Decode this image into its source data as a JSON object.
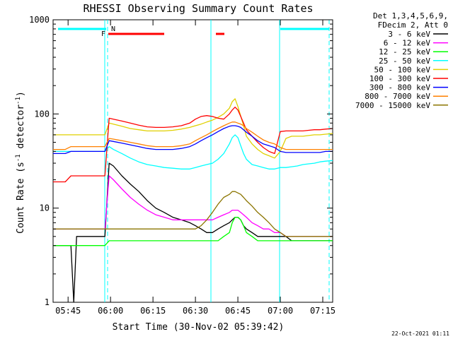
{
  "chart_data": {
    "type": "line",
    "title": "RHESSI Observing Summary Count Rates",
    "xlabel": "Start Time (30-Nov-02 05:39:42)",
    "ylabel_main": "Count Rate (s",
    "ylabel_sup1": "-1",
    "ylabel_mid": " detector",
    "ylabel_sup2": "-1",
    "ylabel_end": ")",
    "yscale": "log",
    "ylim": [
      1,
      1000
    ],
    "xlim_minutes": [
      339.7,
      438.5
    ],
    "x_ticks": [
      {
        "label": "05:45",
        "minute": 345
      },
      {
        "label": "06:00",
        "minute": 360
      },
      {
        "label": "06:15",
        "minute": 375
      },
      {
        "label": "06:30",
        "minute": 390
      },
      {
        "label": "06:45",
        "minute": 405
      },
      {
        "label": "07:00",
        "minute": 420
      },
      {
        "label": "07:15",
        "minute": 435
      }
    ],
    "y_ticks": [
      {
        "label": "1",
        "value": 1
      },
      {
        "label": "10",
        "value": 10
      },
      {
        "label": "100",
        "value": 100
      },
      {
        "label": "1000",
        "value": 1000
      }
    ],
    "legend": {
      "header": [
        "Det 1,3,4,5,6,9,",
        "FDecim 2, Att 0"
      ],
      "placement": "right"
    },
    "series": [
      {
        "name": "3 - 6 keV",
        "color": "#000000",
        "x": [
          339.7,
          341,
          342,
          343,
          344,
          346,
          347,
          348,
          350,
          352,
          354,
          356,
          357,
          358,
          359.5,
          361,
          364,
          367,
          370,
          373,
          376,
          379,
          382,
          385,
          388,
          390,
          392,
          394,
          396,
          398,
          400,
          402,
          403,
          404,
          405,
          406,
          407,
          408,
          410,
          412,
          414,
          416,
          418,
          420,
          422,
          424,
          426,
          428,
          430,
          432,
          434,
          436,
          438.5
        ],
        "y": [
          4,
          4,
          4,
          4,
          4,
          4,
          1,
          5,
          5,
          5,
          5,
          5,
          5,
          5,
          30,
          28,
          22,
          18,
          15,
          12,
          10,
          9,
          8,
          7.5,
          7,
          6.5,
          6,
          5.5,
          5.5,
          6,
          6.5,
          7,
          7.5,
          8,
          8,
          7.5,
          6.5,
          6,
          5.5,
          5,
          5,
          5,
          5,
          5,
          5,
          4.5,
          4.5,
          4.5,
          4.5,
          4.5,
          4.5,
          4.5,
          4.5
        ]
      },
      {
        "name": "6 - 12 keV",
        "color": "#ff00ff",
        "x": [
          339.7,
          341,
          342,
          343,
          344,
          346,
          347,
          348,
          350,
          352,
          354,
          356,
          357,
          358,
          359.5,
          361,
          364,
          367,
          370,
          373,
          376,
          379,
          382,
          385,
          388,
          390,
          392,
          394,
          396,
          398,
          400,
          402,
          403,
          404,
          405,
          406,
          407,
          408,
          410,
          412,
          414,
          416,
          418,
          420,
          422,
          424,
          426,
          428,
          430,
          432,
          434,
          436,
          438.5
        ],
        "y": [
          6,
          6,
          6,
          6,
          6,
          6,
          6,
          6,
          6,
          6,
          6,
          6,
          6,
          6,
          22,
          20,
          16,
          13,
          11,
          9.5,
          8.5,
          8,
          7.5,
          7.5,
          7.5,
          7.5,
          7.5,
          7.5,
          7.5,
          8,
          8.5,
          9,
          9.5,
          9.5,
          9.5,
          9,
          8.5,
          8,
          7,
          6.5,
          6,
          6,
          5.5,
          5.5,
          5,
          5,
          5,
          5,
          5,
          5,
          5,
          5,
          5
        ]
      },
      {
        "name": "12 - 25 keV",
        "color": "#00ff00",
        "x": [
          339.7,
          341,
          342,
          343,
          344,
          346,
          347,
          348,
          350,
          352,
          354,
          356,
          357,
          358,
          359.5,
          361,
          364,
          367,
          370,
          373,
          376,
          379,
          382,
          385,
          388,
          390,
          392,
          394,
          396,
          398,
          400,
          402,
          403,
          404,
          405,
          406,
          407,
          408,
          410,
          412,
          414,
          416,
          418,
          420,
          422,
          424,
          426,
          428,
          430,
          432,
          434,
          436,
          438.5
        ],
        "y": [
          4,
          4,
          4,
          4,
          4,
          4,
          4,
          4,
          4,
          4,
          4,
          4,
          4,
          4,
          4.5,
          4.5,
          4.5,
          4.5,
          4.5,
          4.5,
          4.5,
          4.5,
          4.5,
          4.5,
          4.5,
          4.5,
          4.5,
          4.5,
          4.5,
          4.5,
          5,
          5.5,
          7,
          8,
          8,
          7.5,
          6.5,
          5.5,
          5,
          4.5,
          4.5,
          4.5,
          4.5,
          4.5,
          4.5,
          4.5,
          4.5,
          4.5,
          4.5,
          4.5,
          4.5,
          4.5,
          4.5
        ]
      },
      {
        "name": "25 - 50 keV",
        "color": "#00ffff",
        "x": [
          339.7,
          341,
          342,
          343,
          344,
          346,
          347,
          348,
          350,
          352,
          354,
          356,
          357,
          358,
          359.5,
          361,
          364,
          367,
          370,
          373,
          376,
          379,
          382,
          385,
          388,
          390,
          392,
          394,
          396,
          398,
          400,
          402,
          403,
          404,
          405,
          406,
          407,
          408,
          410,
          412,
          414,
          416,
          418,
          420,
          422,
          424,
          426,
          428,
          430,
          432,
          434,
          436,
          438.5
        ],
        "y": [
          40,
          40,
          40,
          40,
          40,
          40,
          40,
          40,
          40,
          40,
          40,
          40,
          40,
          40,
          45,
          42,
          38,
          34,
          31,
          29,
          28,
          27,
          26.5,
          26,
          26,
          27,
          28,
          29,
          30,
          33,
          38,
          48,
          56,
          60,
          56,
          46,
          38,
          33,
          29,
          28,
          27,
          26,
          26,
          27,
          27,
          27.5,
          28,
          29,
          29.5,
          30,
          31,
          31.5,
          32
        ]
      },
      {
        "name": "50 - 100 keV",
        "color": "#e0d000",
        "x": [
          339.7,
          341,
          342,
          343,
          344,
          346,
          347,
          348,
          350,
          352,
          354,
          356,
          357,
          358,
          359.5,
          361,
          364,
          367,
          370,
          373,
          376,
          379,
          382,
          385,
          388,
          390,
          392,
          394,
          396,
          398,
          400,
          402,
          403,
          404,
          405,
          406,
          407,
          408,
          410,
          412,
          414,
          416,
          418,
          420,
          422,
          424,
          426,
          428,
          430,
          432,
          434,
          436,
          438.5
        ],
        "y": [
          60,
          60,
          60,
          60,
          60,
          60,
          60,
          60,
          60,
          60,
          60,
          60,
          60,
          60,
          80,
          78,
          74,
          70,
          68,
          66,
          66,
          66,
          67,
          69,
          72,
          75,
          78,
          82,
          86,
          92,
          100,
          115,
          135,
          145,
          120,
          95,
          75,
          58,
          48,
          42,
          38,
          36,
          34,
          40,
          55,
          58,
          58,
          58,
          59,
          60,
          60,
          61,
          62
        ]
      },
      {
        "name": "100 - 300 keV",
        "color": "#ff0000",
        "x": [
          339.7,
          341,
          342,
          343,
          344,
          346,
          347,
          348,
          350,
          352,
          354,
          356,
          357,
          358,
          359.5,
          361,
          364,
          367,
          370,
          373,
          376,
          379,
          382,
          385,
          388,
          390,
          392,
          394,
          396,
          398,
          400,
          402,
          403,
          404,
          405,
          406,
          407,
          408,
          410,
          412,
          414,
          416,
          418,
          420,
          422,
          424,
          426,
          428,
          430,
          432,
          434,
          436,
          438.5
        ],
        "y": [
          19,
          19,
          19,
          19,
          19,
          22,
          22,
          22,
          22,
          22,
          22,
          22,
          22,
          22,
          90,
          88,
          84,
          80,
          76,
          73,
          72,
          72,
          73,
          75,
          80,
          88,
          94,
          96,
          94,
          90,
          88,
          100,
          110,
          118,
          110,
          94,
          80,
          68,
          58,
          50,
          44,
          40,
          38,
          65,
          66,
          66,
          66,
          66,
          67,
          68,
          68,
          69,
          70
        ]
      },
      {
        "name": "300 - 800 keV",
        "color": "#0000ff",
        "x": [
          339.7,
          341,
          342,
          343,
          344,
          346,
          347,
          348,
          350,
          352,
          354,
          356,
          357,
          358,
          359.5,
          361,
          364,
          367,
          370,
          373,
          376,
          379,
          382,
          385,
          388,
          390,
          392,
          394,
          396,
          398,
          400,
          402,
          403,
          404,
          405,
          406,
          407,
          408,
          410,
          412,
          414,
          416,
          418,
          420,
          422,
          424,
          426,
          428,
          430,
          432,
          434,
          436,
          438.5
        ],
        "y": [
          38,
          38,
          38,
          38,
          38,
          40,
          40,
          40,
          40,
          40,
          40,
          40,
          40,
          40,
          52,
          51,
          49,
          47,
          45,
          43,
          42,
          42,
          42,
          43,
          45,
          48,
          52,
          56,
          60,
          65,
          70,
          74,
          75,
          75,
          74,
          72,
          68,
          64,
          58,
          52,
          48,
          46,
          44,
          40,
          39,
          39,
          39,
          39,
          39,
          39,
          39,
          40,
          40
        ]
      },
      {
        "name": "800 - 7000 keV",
        "color": "#ff8000",
        "x": [
          339.7,
          341,
          342,
          343,
          344,
          346,
          347,
          348,
          350,
          352,
          354,
          356,
          357,
          358,
          359.5,
          361,
          364,
          367,
          370,
          373,
          376,
          379,
          382,
          385,
          388,
          390,
          392,
          394,
          396,
          398,
          400,
          402,
          403,
          404,
          405,
          406,
          407,
          408,
          410,
          412,
          414,
          416,
          418,
          420,
          422,
          424,
          426,
          428,
          430,
          432,
          434,
          436,
          438.5
        ],
        "y": [
          42,
          42,
          42,
          42,
          42,
          45,
          45,
          45,
          45,
          45,
          45,
          45,
          45,
          45,
          55,
          54,
          52,
          50,
          48,
          46,
          45,
          45,
          45,
          46,
          48,
          52,
          56,
          60,
          65,
          70,
          75,
          80,
          82,
          82,
          80,
          78,
          75,
          70,
          64,
          58,
          53,
          50,
          48,
          44,
          42,
          42,
          42,
          42,
          42,
          42,
          42,
          42,
          42
        ]
      },
      {
        "name": "7000 - 15000 keV",
        "color": "#8b7500",
        "x": [
          339.7,
          341,
          342,
          343,
          344,
          346,
          347,
          348,
          350,
          352,
          354,
          356,
          357,
          358,
          359.5,
          361,
          364,
          367,
          370,
          373,
          376,
          379,
          382,
          385,
          388,
          390,
          392,
          394,
          396,
          398,
          400,
          402,
          403,
          404,
          405,
          406,
          407,
          408,
          410,
          412,
          414,
          416,
          418,
          420,
          422,
          424,
          426,
          428,
          430,
          432,
          434,
          436,
          438.5
        ],
        "y": [
          6,
          6,
          6,
          6,
          6,
          6,
          6,
          6,
          6,
          6,
          6,
          6,
          6,
          6,
          6,
          6,
          6,
          6,
          6,
          6,
          6,
          6,
          6,
          6,
          6,
          6,
          6.5,
          7.5,
          9,
          11,
          13,
          14,
          15,
          15,
          14.5,
          14,
          13,
          12,
          10.5,
          9,
          8,
          7,
          6,
          5.5,
          5,
          5,
          5,
          5,
          5,
          5,
          5,
          5,
          5
        ]
      }
    ],
    "markers": [
      {
        "label": "F",
        "color": "#ff0000"
      },
      {
        "label": "N",
        "color": "#00ffff"
      }
    ],
    "timestamp": "22-Oct-2021 01:11"
  }
}
